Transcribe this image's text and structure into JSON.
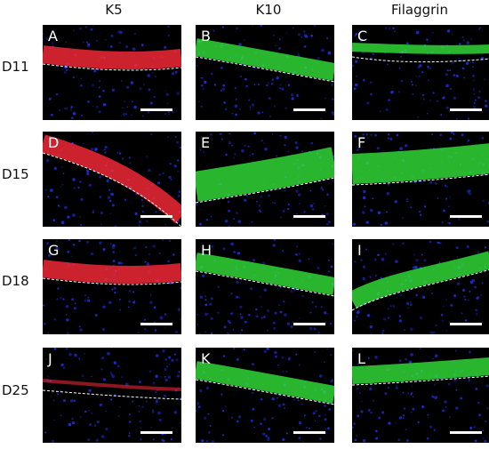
{
  "columns": [
    {
      "label": "K5"
    },
    {
      "label": "K10"
    },
    {
      "label": "Filaggrin"
    }
  ],
  "rows": [
    {
      "label": "D11"
    },
    {
      "label": "D15"
    },
    {
      "label": "D18"
    },
    {
      "label": "D25"
    }
  ],
  "panels": [
    {
      "letter": "A",
      "stain": "red-band",
      "color": "#ff2a3a"
    },
    {
      "letter": "B",
      "stain": "green-band",
      "color": "#33e23a"
    },
    {
      "letter": "C",
      "stain": "green-thin",
      "color": "#33e23a"
    },
    {
      "letter": "D",
      "stain": "red-curve",
      "color": "#ff2a3a"
    },
    {
      "letter": "E",
      "stain": "green-thick",
      "color": "#33e23a"
    },
    {
      "letter": "F",
      "stain": "green-wide",
      "color": "#33e23a"
    },
    {
      "letter": "G",
      "stain": "red-band",
      "color": "#ff2a3a"
    },
    {
      "letter": "H",
      "stain": "green-band",
      "color": "#33e23a"
    },
    {
      "letter": "I",
      "stain": "green-diag",
      "color": "#33e23a"
    },
    {
      "letter": "J",
      "stain": "red-faint",
      "color": "#ff2a3a"
    },
    {
      "letter": "K",
      "stain": "green-band",
      "color": "#33e23a"
    },
    {
      "letter": "L",
      "stain": "green-wavy",
      "color": "#33e23a"
    }
  ],
  "colors": {
    "nuclei": "#2236ff",
    "background": "#000000",
    "boundary": "#ffffff"
  }
}
